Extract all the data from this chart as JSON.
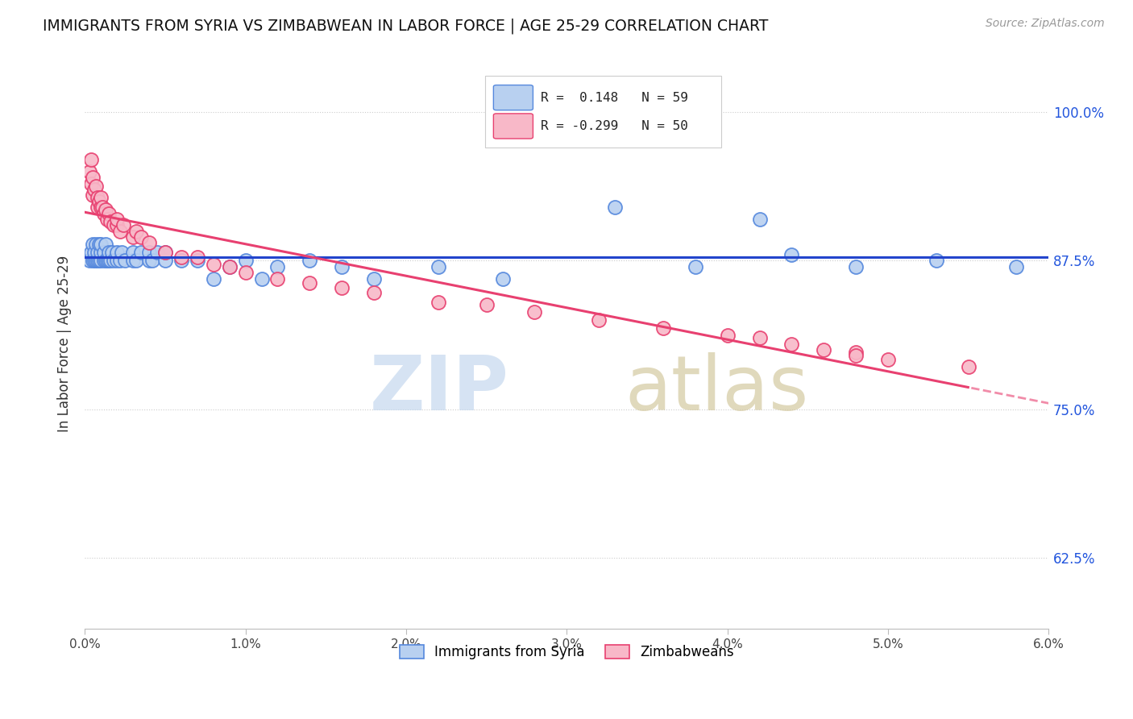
{
  "title": "IMMIGRANTS FROM SYRIA VS ZIMBABWEAN IN LABOR FORCE | AGE 25-29 CORRELATION CHART",
  "source": "Source: ZipAtlas.com",
  "ylabel": "In Labor Force | Age 25-29",
  "ytick_labels": [
    "62.5%",
    "75.0%",
    "87.5%",
    "100.0%"
  ],
  "ytick_values": [
    0.625,
    0.75,
    0.875,
    1.0
  ],
  "xmin": 0.0,
  "xmax": 0.06,
  "ymin": 0.565,
  "ymax": 1.045,
  "legend_r_syria": "0.148",
  "legend_n_syria": "59",
  "legend_r_zimb": "-0.299",
  "legend_n_zimb": "50",
  "color_syria_fill": "#b8d0f0",
  "color_syria_edge": "#5588dd",
  "color_zimb_fill": "#f8b8c8",
  "color_zimb_edge": "#e84070",
  "color_syria_line": "#2244cc",
  "color_zimb_line": "#e84070",
  "syria_x": [
    0.0003,
    0.0004,
    0.0005,
    0.0005,
    0.0006,
    0.0006,
    0.0007,
    0.0007,
    0.0008,
    0.0008,
    0.0009,
    0.0009,
    0.001,
    0.001,
    0.001,
    0.0012,
    0.0012,
    0.0013,
    0.0013,
    0.0014,
    0.0015,
    0.0015,
    0.0016,
    0.0017,
    0.0018,
    0.002,
    0.002,
    0.0022,
    0.0023,
    0.0025,
    0.003,
    0.003,
    0.0032,
    0.0035,
    0.004,
    0.004,
    0.0042,
    0.0045,
    0.005,
    0.005,
    0.006,
    0.007,
    0.008,
    0.009,
    0.01,
    0.011,
    0.012,
    0.014,
    0.016,
    0.018,
    0.022,
    0.026,
    0.033,
    0.038,
    0.042,
    0.044,
    0.048,
    0.053,
    0.058
  ],
  "syria_y": [
    0.875,
    0.882,
    0.875,
    0.889,
    0.875,
    0.882,
    0.875,
    0.889,
    0.875,
    0.882,
    0.875,
    0.889,
    0.875,
    0.882,
    0.889,
    0.875,
    0.882,
    0.875,
    0.889,
    0.875,
    0.875,
    0.882,
    0.875,
    0.882,
    0.875,
    0.875,
    0.882,
    0.875,
    0.882,
    0.875,
    0.875,
    0.882,
    0.875,
    0.882,
    0.875,
    0.882,
    0.875,
    0.882,
    0.875,
    0.882,
    0.875,
    0.875,
    0.86,
    0.87,
    0.875,
    0.86,
    0.87,
    0.875,
    0.87,
    0.86,
    0.87,
    0.86,
    0.92,
    0.87,
    0.91,
    0.88,
    0.87,
    0.875,
    0.87
  ],
  "zimb_x": [
    0.0003,
    0.0004,
    0.0004,
    0.0005,
    0.0005,
    0.0006,
    0.0007,
    0.0008,
    0.0008,
    0.0009,
    0.001,
    0.001,
    0.0011,
    0.0012,
    0.0013,
    0.0014,
    0.0015,
    0.0016,
    0.0018,
    0.002,
    0.002,
    0.0022,
    0.0024,
    0.003,
    0.0032,
    0.0035,
    0.004,
    0.005,
    0.006,
    0.007,
    0.008,
    0.009,
    0.01,
    0.012,
    0.014,
    0.016,
    0.018,
    0.022,
    0.025,
    0.028,
    0.032,
    0.036,
    0.04,
    0.044,
    0.048,
    0.042,
    0.046,
    0.048,
    0.05,
    0.055
  ],
  "zimb_y": [
    0.95,
    0.94,
    0.96,
    0.93,
    0.945,
    0.935,
    0.938,
    0.92,
    0.928,
    0.925,
    0.92,
    0.928,
    0.92,
    0.915,
    0.918,
    0.91,
    0.915,
    0.908,
    0.905,
    0.905,
    0.91,
    0.9,
    0.905,
    0.895,
    0.9,
    0.895,
    0.89,
    0.882,
    0.878,
    0.878,
    0.872,
    0.87,
    0.865,
    0.86,
    0.856,
    0.852,
    0.848,
    0.84,
    0.838,
    0.832,
    0.825,
    0.818,
    0.812,
    0.805,
    0.798,
    0.81,
    0.8,
    0.795,
    0.792,
    0.786
  ]
}
